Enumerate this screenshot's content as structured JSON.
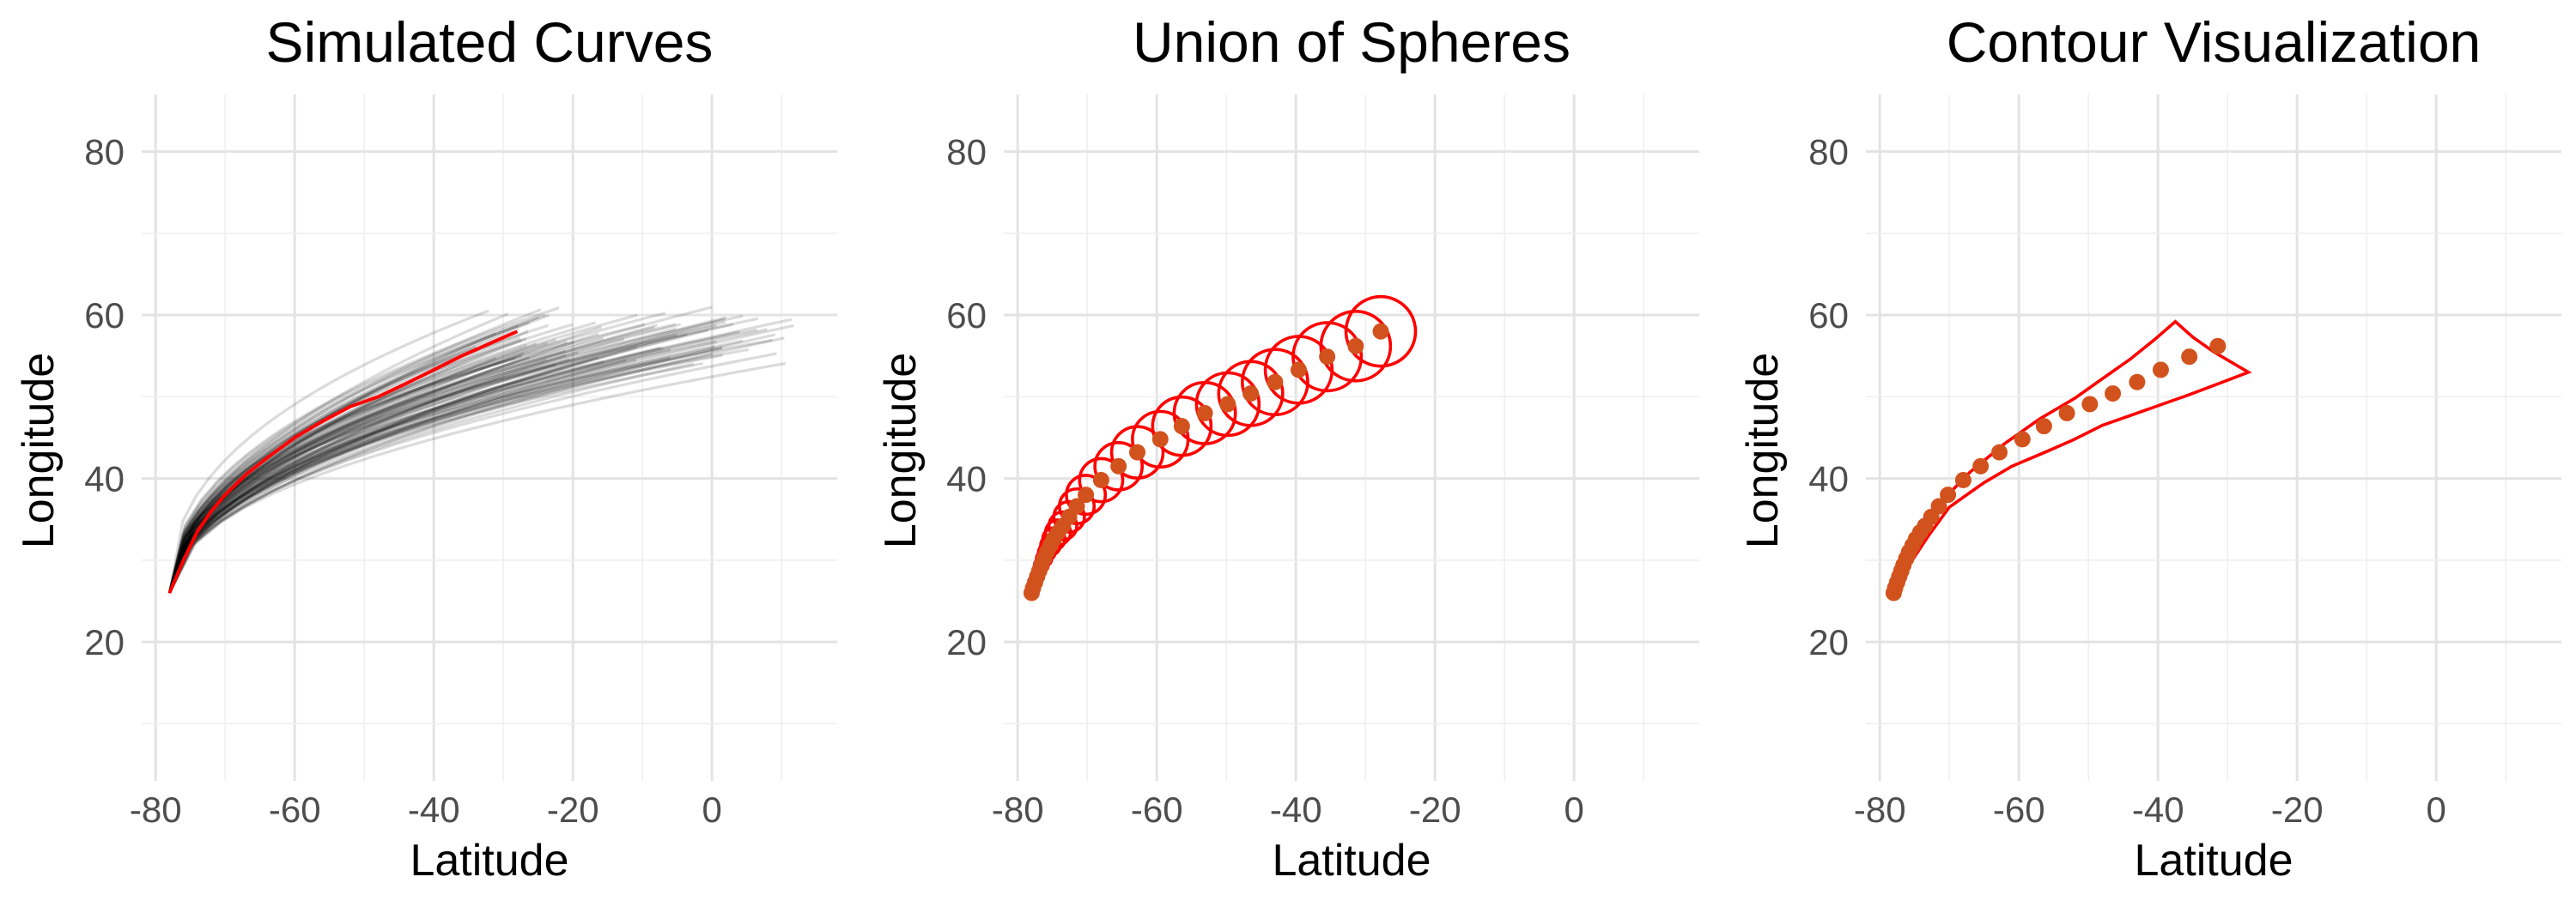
{
  "figure": {
    "background": "#ffffff",
    "grid_color": "#e3e3e3"
  },
  "chart_data": [
    {
      "type": "line",
      "title": "Simulated Curves",
      "xlabel": "Latitude",
      "ylabel": "Longitude",
      "xlim": [
        -82,
        18
      ],
      "ylim": [
        3,
        87
      ],
      "xticks": [
        -80,
        -60,
        -40,
        -20,
        0
      ],
      "yticks": [
        20,
        40,
        60,
        80
      ],
      "grid": true,
      "legend": "none",
      "series": [
        {
          "role": "simulated_curves",
          "color": "#000000",
          "opacity": 0.14,
          "count": 90,
          "start": [
            -78,
            26
          ],
          "end_range_x": [
            -34,
            12
          ],
          "end_range_y": [
            50,
            61
          ]
        },
        {
          "role": "mean_curve",
          "color": "#ff0000",
          "x": [
            -78,
            -76,
            -74,
            -72,
            -70,
            -67,
            -64,
            -60,
            -56,
            -52,
            -48,
            -44,
            -40,
            -36,
            -32,
            -28
          ],
          "y": [
            26,
            30,
            33.5,
            36,
            38,
            40.5,
            42.5,
            45,
            47,
            48.8,
            50,
            51.6,
            53.3,
            55,
            56.5,
            58
          ]
        }
      ]
    },
    {
      "type": "scatter",
      "title": "Union of Spheres",
      "xlabel": "Latitude",
      "ylabel": "Longitude",
      "xlim": [
        -82,
        18
      ],
      "ylim": [
        3,
        87
      ],
      "xticks": [
        -80,
        -60,
        -40,
        -20,
        0
      ],
      "yticks": [
        20,
        40,
        60,
        80
      ],
      "grid": true,
      "legend": "none",
      "point_color": "#d2521e",
      "circle_color": "#ff0000",
      "points": [
        {
          "x": -78.0,
          "y": 26.0,
          "r": 0.5
        },
        {
          "x": -77.8,
          "y": 26.6,
          "r": 0.6
        },
        {
          "x": -77.5,
          "y": 27.3,
          "r": 0.7
        },
        {
          "x": -77.2,
          "y": 28.0,
          "r": 0.8
        },
        {
          "x": -76.9,
          "y": 28.7,
          "r": 0.9
        },
        {
          "x": -76.6,
          "y": 29.4,
          "r": 1.0
        },
        {
          "x": -76.2,
          "y": 30.2,
          "r": 1.1
        },
        {
          "x": -75.8,
          "y": 31.0,
          "r": 1.2
        },
        {
          "x": -75.3,
          "y": 31.8,
          "r": 1.4
        },
        {
          "x": -74.8,
          "y": 32.6,
          "r": 1.6
        },
        {
          "x": -74.2,
          "y": 33.4,
          "r": 1.8
        },
        {
          "x": -73.5,
          "y": 34.2,
          "r": 2.0
        },
        {
          "x": -72.6,
          "y": 35.3,
          "r": 2.2
        },
        {
          "x": -71.5,
          "y": 36.6,
          "r": 2.5
        },
        {
          "x": -70.2,
          "y": 38.0,
          "r": 2.8
        },
        {
          "x": -68.0,
          "y": 39.8,
          "r": 3.1
        },
        {
          "x": -65.5,
          "y": 41.5,
          "r": 3.4
        },
        {
          "x": -62.8,
          "y": 43.2,
          "r": 3.7
        },
        {
          "x": -59.5,
          "y": 44.8,
          "r": 4.0
        },
        {
          "x": -56.4,
          "y": 46.4,
          "r": 4.2
        },
        {
          "x": -53.1,
          "y": 48.0,
          "r": 4.4
        },
        {
          "x": -49.8,
          "y": 49.1,
          "r": 4.5
        },
        {
          "x": -46.5,
          "y": 50.4,
          "r": 4.6
        },
        {
          "x": -43.0,
          "y": 51.8,
          "r": 4.7
        },
        {
          "x": -39.6,
          "y": 53.3,
          "r": 4.8
        },
        {
          "x": -35.5,
          "y": 54.9,
          "r": 4.9
        },
        {
          "x": -31.4,
          "y": 56.2,
          "r": 5.0
        },
        {
          "x": -27.8,
          "y": 58.0,
          "r": 5.0
        }
      ]
    },
    {
      "type": "scatter",
      "title": "Contour Visualization",
      "xlabel": "Latitude",
      "ylabel": "Longitude",
      "xlim": [
        -82,
        18
      ],
      "ylim": [
        3,
        87
      ],
      "xticks": [
        -80,
        -60,
        -40,
        -20,
        0
      ],
      "yticks": [
        20,
        40,
        60,
        80
      ],
      "grid": true,
      "legend": "none",
      "point_color": "#d2521e",
      "contour_color": "#ff0000",
      "points": [
        {
          "x": -78.0,
          "y": 26.0
        },
        {
          "x": -77.8,
          "y": 26.6
        },
        {
          "x": -77.5,
          "y": 27.3
        },
        {
          "x": -77.2,
          "y": 28.0
        },
        {
          "x": -76.9,
          "y": 28.7
        },
        {
          "x": -76.6,
          "y": 29.4
        },
        {
          "x": -76.2,
          "y": 30.2
        },
        {
          "x": -75.8,
          "y": 31.0
        },
        {
          "x": -75.3,
          "y": 31.8
        },
        {
          "x": -74.8,
          "y": 32.6
        },
        {
          "x": -74.2,
          "y": 33.4
        },
        {
          "x": -73.5,
          "y": 34.2
        },
        {
          "x": -72.6,
          "y": 35.3
        },
        {
          "x": -71.5,
          "y": 36.6
        },
        {
          "x": -70.2,
          "y": 38.0
        },
        {
          "x": -68.0,
          "y": 39.8
        },
        {
          "x": -65.5,
          "y": 41.5
        },
        {
          "x": -62.8,
          "y": 43.2
        },
        {
          "x": -59.5,
          "y": 44.8
        },
        {
          "x": -56.4,
          "y": 46.4
        },
        {
          "x": -53.1,
          "y": 48.0
        },
        {
          "x": -49.8,
          "y": 49.1
        },
        {
          "x": -46.5,
          "y": 50.4
        },
        {
          "x": -43.0,
          "y": 51.8
        },
        {
          "x": -39.6,
          "y": 53.3
        },
        {
          "x": -35.5,
          "y": 54.9
        },
        {
          "x": -31.4,
          "y": 56.2
        }
      ],
      "contour": [
        {
          "x": -78.3,
          "y": 25.8
        },
        {
          "x": -76.5,
          "y": 29.5
        },
        {
          "x": -74.0,
          "y": 33.5
        },
        {
          "x": -71.0,
          "y": 37.3
        },
        {
          "x": -67.0,
          "y": 40.8
        },
        {
          "x": -62.0,
          "y": 44.3
        },
        {
          "x": -57.0,
          "y": 47.3
        },
        {
          "x": -52.0,
          "y": 49.8
        },
        {
          "x": -48.0,
          "y": 52.2
        },
        {
          "x": -44.0,
          "y": 54.6
        },
        {
          "x": -40.5,
          "y": 57.0
        },
        {
          "x": -37.5,
          "y": 59.2
        },
        {
          "x": -35.0,
          "y": 57.3
        },
        {
          "x": -32.0,
          "y": 55.5
        },
        {
          "x": -27.0,
          "y": 53.0
        },
        {
          "x": -31.0,
          "y": 51.7
        },
        {
          "x": -36.0,
          "y": 50.1
        },
        {
          "x": -42.0,
          "y": 48.3
        },
        {
          "x": -48.0,
          "y": 46.5
        },
        {
          "x": -52.0,
          "y": 44.8
        },
        {
          "x": -56.0,
          "y": 43.3
        },
        {
          "x": -61.0,
          "y": 41.5
        },
        {
          "x": -65.0,
          "y": 39.5
        },
        {
          "x": -70.0,
          "y": 36.5
        },
        {
          "x": -73.0,
          "y": 33.0
        },
        {
          "x": -75.5,
          "y": 29.8
        },
        {
          "x": -77.5,
          "y": 26.3
        }
      ]
    }
  ]
}
